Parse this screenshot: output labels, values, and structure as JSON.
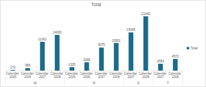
{
  "chart_data": {
    "type": "bar",
    "title": "Total",
    "categories": [
      "Calendar 2005",
      "Calendar 2006",
      "Calendar 2007",
      "Calendar 2008",
      "Calendar 2005",
      "Calendar 2006",
      "Calendar 2007",
      "Calendar 2008",
      "Calendar 2007",
      "Calendar 2008",
      "Calendar 2007",
      "Calendar 2008"
    ],
    "category_groups": [
      {
        "name": "M",
        "size": 4
      },
      {
        "name": "R",
        "size": 4
      },
      {
        "name": "S",
        "size": 2
      },
      {
        "name": "T",
        "size": 2
      }
    ],
    "series": [
      {
        "name": "Total",
        "color": "#1b6b8a",
        "values": [
          272,
          968,
          11361,
          14093,
          1335,
          3258,
          9075,
          10901,
          15065,
          21445,
          2683,
          4572
        ]
      }
    ],
    "ylim": [
      0,
      23000
    ],
    "grid": false,
    "legend": "right",
    "data_labels": true,
    "tick_labels": "x"
  }
}
